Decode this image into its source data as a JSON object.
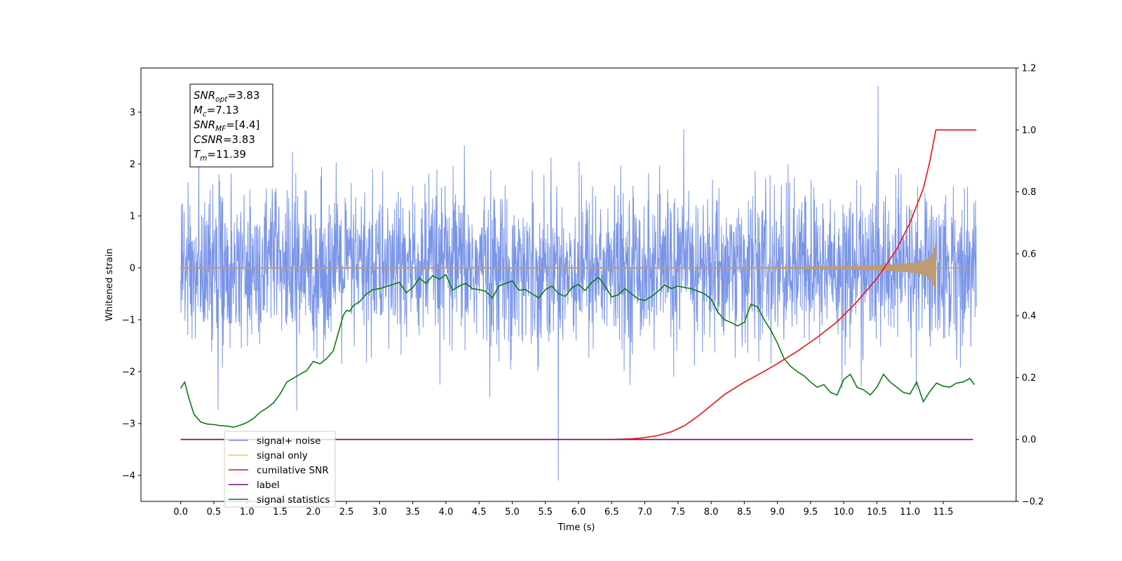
{
  "chart_data": {
    "type": "line",
    "xlabel": "Time (s)",
    "ylabel": "Whitened strain",
    "xlim": [
      -0.6,
      12.6
    ],
    "ylim": [
      -4.5,
      3.85
    ],
    "y2lim": [
      -0.2,
      1.2
    ],
    "x_ticks": [
      "0.0",
      "0.5",
      "1.0",
      "1.5",
      "2.0",
      "2.5",
      "3.0",
      "3.5",
      "4.0",
      "4.5",
      "5.0",
      "5.5",
      "6.0",
      "6.5",
      "7.0",
      "7.5",
      "8.0",
      "8.5",
      "9.0",
      "9.5",
      "10.0",
      "10.5",
      "11.0",
      "11.5"
    ],
    "y_ticks": [
      "-4",
      "-3",
      "-2",
      "-1",
      "0",
      "1",
      "2",
      "3"
    ],
    "y2_ticks": [
      "-0.2",
      "0.0",
      "0.2",
      "0.4",
      "0.6",
      "0.8",
      "1.0",
      "1.2"
    ],
    "grid": false,
    "legend_position": "lower-left",
    "annotation": {
      "lines": [
        {
          "base": "SNR",
          "sub": "opt",
          "rest": "=3.83"
        },
        {
          "base": "M",
          "sub": "c",
          "rest": "=7.13"
        },
        {
          "base": "SNR",
          "sub": "MF",
          "rest": "=[4.4]"
        },
        {
          "base": "CSNR",
          "sub": "",
          "rest": "=3.83"
        },
        {
          "base": "T",
          "sub": "m",
          "rest": "=11.39"
        }
      ]
    },
    "series": [
      {
        "name": "signal+ noise",
        "color": "#7a95e8",
        "axis": "left",
        "style": "noise",
        "x_range": [
          0.0,
          12.0
        ],
        "approx_std": 0.75,
        "y_max": 3.5,
        "y_min": -4.1
      },
      {
        "name": "signal only",
        "color": "#f7c16c",
        "axis": "left",
        "style": "chirp",
        "x_range": [
          0.0,
          12.0
        ],
        "merger_time": 11.39,
        "peak_amplitude": 0.45,
        "visible_color": "#bf9b73"
      },
      {
        "name": "cumilative SNR",
        "color": "#ee1111",
        "axis": "right",
        "x": [
          0.0,
          6.5,
          6.8,
          7.0,
          7.2,
          7.4,
          7.6,
          7.8,
          8.0,
          8.2,
          8.5,
          8.8,
          9.0,
          9.3,
          9.6,
          9.9,
          10.2,
          10.5,
          10.8,
          11.0,
          11.2,
          11.3,
          11.39,
          12.0
        ],
        "y": [
          0.0,
          0.0,
          0.002,
          0.006,
          0.013,
          0.025,
          0.045,
          0.075,
          0.11,
          0.145,
          0.185,
          0.22,
          0.245,
          0.285,
          0.33,
          0.38,
          0.445,
          0.52,
          0.615,
          0.7,
          0.81,
          0.9,
          1.0,
          1.0
        ]
      },
      {
        "name": "label",
        "color": "#6c0f76",
        "axis": "right",
        "x": [
          0.0,
          11.95
        ],
        "y": [
          0.0,
          0.0
        ]
      },
      {
        "name": "signal statistics",
        "color": "#0e7a0e",
        "axis": "left",
        "x": [
          0.0,
          0.06,
          0.12,
          0.2,
          0.3,
          0.4,
          0.5,
          0.6,
          0.7,
          0.8,
          0.9,
          1.0,
          1.1,
          1.2,
          1.3,
          1.4,
          1.5,
          1.6,
          1.8,
          1.9,
          2.0,
          2.1,
          2.2,
          2.3,
          2.4,
          2.45,
          2.5,
          2.55,
          2.6,
          2.7,
          2.8,
          2.9,
          3.0,
          3.1,
          3.2,
          3.3,
          3.4,
          3.5,
          3.6,
          3.7,
          3.8,
          3.9,
          4.0,
          4.1,
          4.2,
          4.3,
          4.4,
          4.5,
          4.6,
          4.7,
          4.8,
          4.9,
          5.0,
          5.1,
          5.2,
          5.3,
          5.4,
          5.5,
          5.6,
          5.7,
          5.8,
          5.9,
          6.0,
          6.1,
          6.2,
          6.3,
          6.4,
          6.5,
          6.6,
          6.7,
          6.8,
          6.9,
          7.0,
          7.1,
          7.2,
          7.3,
          7.4,
          7.5,
          7.6,
          7.7,
          7.8,
          7.9,
          8.0,
          8.1,
          8.2,
          8.3,
          8.4,
          8.5,
          8.6,
          8.7,
          8.8,
          8.9,
          9.0,
          9.1,
          9.2,
          9.3,
          9.4,
          9.5,
          9.6,
          9.7,
          9.8,
          9.9,
          10.0,
          10.1,
          10.2,
          10.3,
          10.4,
          10.5,
          10.6,
          10.7,
          10.8,
          10.9,
          11.0,
          11.1,
          11.2,
          11.3,
          11.4,
          11.5,
          11.6,
          11.7,
          11.8,
          11.9,
          11.97
        ],
        "y": [
          -2.32,
          -2.2,
          -2.5,
          -2.82,
          -2.97,
          -3.01,
          -3.02,
          -3.04,
          -3.05,
          -3.07,
          -3.03,
          -2.98,
          -2.9,
          -2.78,
          -2.7,
          -2.6,
          -2.43,
          -2.2,
          -2.05,
          -1.98,
          -1.8,
          -1.85,
          -1.75,
          -1.6,
          -1.15,
          -0.92,
          -0.82,
          -0.84,
          -0.73,
          -0.65,
          -0.5,
          -0.42,
          -0.4,
          -0.36,
          -0.32,
          -0.28,
          -0.48,
          -0.38,
          -0.2,
          -0.3,
          -0.15,
          -0.22,
          -0.13,
          -0.43,
          -0.35,
          -0.3,
          -0.4,
          -0.42,
          -0.45,
          -0.58,
          -0.35,
          -0.3,
          -0.25,
          -0.43,
          -0.42,
          -0.5,
          -0.58,
          -0.42,
          -0.35,
          -0.5,
          -0.55,
          -0.38,
          -0.32,
          -0.44,
          -0.28,
          -0.18,
          -0.35,
          -0.56,
          -0.52,
          -0.4,
          -0.5,
          -0.6,
          -0.63,
          -0.55,
          -0.45,
          -0.33,
          -0.4,
          -0.35,
          -0.38,
          -0.4,
          -0.45,
          -0.5,
          -0.6,
          -0.85,
          -1.0,
          -1.05,
          -1.12,
          -1.05,
          -0.7,
          -0.75,
          -1.0,
          -1.2,
          -1.45,
          -1.75,
          -1.9,
          -2.0,
          -2.08,
          -2.2,
          -2.3,
          -2.25,
          -2.4,
          -2.45,
          -2.15,
          -2.05,
          -2.3,
          -2.35,
          -2.45,
          -2.3,
          -2.05,
          -2.2,
          -2.3,
          -2.4,
          -2.43,
          -2.2,
          -2.58,
          -2.38,
          -2.22,
          -2.28,
          -2.3,
          -2.22,
          -2.2,
          -2.13,
          -2.25
        ]
      }
    ]
  }
}
